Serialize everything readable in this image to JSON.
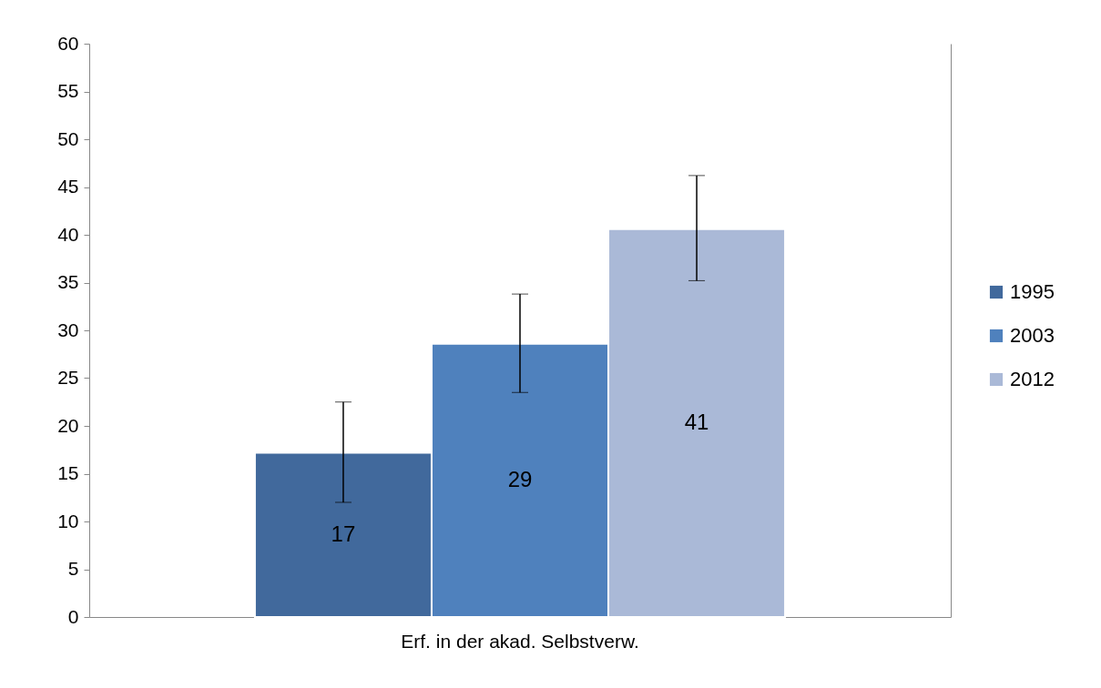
{
  "chart_data": {
    "type": "bar",
    "categories": [
      "Erf. in der akad. Selbstverw."
    ],
    "series": [
      {
        "name": "1995",
        "color": "#41699c",
        "values": [
          17.2
        ],
        "errors": [
          [
            12,
            22.5
          ]
        ],
        "value_labels": [
          "17"
        ]
      },
      {
        "name": "2003",
        "color": "#4f81bd",
        "values": [
          28.6
        ],
        "errors": [
          [
            23.5,
            33.8
          ]
        ],
        "value_labels": [
          "29"
        ]
      },
      {
        "name": "2012",
        "color": "#aab9d7",
        "values": [
          40.6
        ],
        "errors": [
          [
            35.2,
            46.2
          ]
        ],
        "value_labels": [
          "41"
        ]
      }
    ],
    "ylim": [
      0,
      60
    ],
    "yticks": [
      0,
      5,
      10,
      15,
      20,
      25,
      30,
      35,
      40,
      45,
      50,
      55,
      60
    ],
    "grid": false,
    "legend": "right"
  }
}
